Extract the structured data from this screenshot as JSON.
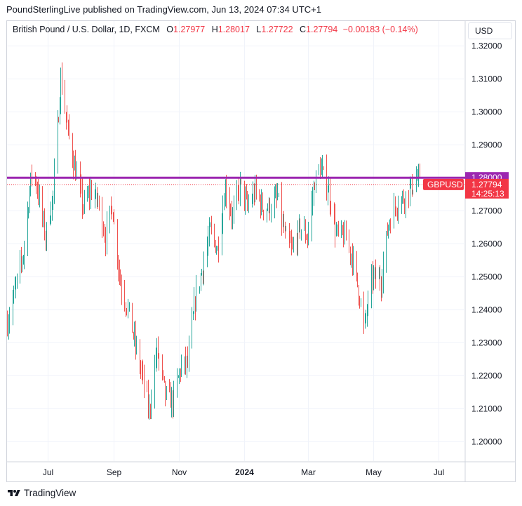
{
  "header": {
    "published_by": "PoundSterlingLive published on TradingView.com, Jun 13, 2024 07:34 UTC+1"
  },
  "legend": {
    "instrument": "British Pound / U.S. Dollar, 1D, FXCM",
    "o_label": "O",
    "o": "1.27977",
    "h_label": "H",
    "h": "1.28017",
    "l_label": "L",
    "l": "1.27722",
    "c_label": "C",
    "c": "1.27794",
    "change": "−0.00183 (−0.14%)"
  },
  "currency_button": "USD",
  "footer": {
    "brand": "TradingView"
  },
  "colors": {
    "up": "#26a69a",
    "down": "#ef5350",
    "level_line": "#9c27b0",
    "price_label": "#f23645"
  },
  "chart_data": {
    "type": "candlestick",
    "symbol": "GBPUSD",
    "y_range": [
      1.194,
      1.322
    ],
    "y_ticks": [
      "1.20000",
      "1.21000",
      "1.22000",
      "1.23000",
      "1.24000",
      "1.25000",
      "1.26000",
      "1.27000",
      "1.28000",
      "1.29000",
      "1.30000",
      "1.31000",
      "1.32000"
    ],
    "x_ticks": [
      {
        "label": "Jul",
        "date": "2023-07-01"
      },
      {
        "label": "Sep",
        "date": "2023-09-01"
      },
      {
        "label": "Nov",
        "date": "2023-11-01"
      },
      {
        "label": "2024",
        "date": "2024-01-01",
        "bold": true
      },
      {
        "label": "Mar",
        "date": "2024-03-01"
      },
      {
        "label": "May",
        "date": "2024-05-01"
      },
      {
        "label": "Jul",
        "date": "2024-07-01"
      }
    ],
    "x_start": "2023-05-24",
    "x_end": "2024-07-26",
    "level_line": {
      "value": 1.28,
      "label": "1.28000"
    },
    "last_price": {
      "value": 1.27794,
      "label": "1.27794",
      "countdown": "14:25:13"
    },
    "series": [
      {
        "date": "2023-05-24",
        "close": 1.236
      },
      {
        "date": "2023-06-08",
        "close": 1.257
      },
      {
        "date": "2023-06-16",
        "close": 1.282
      },
      {
        "date": "2023-06-21",
        "close": 1.277
      },
      {
        "date": "2023-06-29",
        "close": 1.262
      },
      {
        "date": "2023-07-06",
        "close": 1.275
      },
      {
        "date": "2023-07-13",
        "close": 1.31
      },
      {
        "date": "2023-07-19",
        "close": 1.296
      },
      {
        "date": "2023-07-25",
        "close": 1.285
      },
      {
        "date": "2023-08-03",
        "close": 1.271
      },
      {
        "date": "2023-08-10",
        "close": 1.276
      },
      {
        "date": "2023-08-17",
        "close": 1.273
      },
      {
        "date": "2023-08-24",
        "close": 1.262
      },
      {
        "date": "2023-08-30",
        "close": 1.272
      },
      {
        "date": "2023-09-07",
        "close": 1.248
      },
      {
        "date": "2023-09-15",
        "close": 1.239
      },
      {
        "date": "2023-09-21",
        "close": 1.229
      },
      {
        "date": "2023-09-28",
        "close": 1.219
      },
      {
        "date": "2023-10-04",
        "close": 1.209
      },
      {
        "date": "2023-10-11",
        "close": 1.228
      },
      {
        "date": "2023-10-19",
        "close": 1.214
      },
      {
        "date": "2023-10-26",
        "close": 1.212
      },
      {
        "date": "2023-11-02",
        "close": 1.222
      },
      {
        "date": "2023-11-09",
        "close": 1.224
      },
      {
        "date": "2023-11-16",
        "close": 1.243
      },
      {
        "date": "2023-11-23",
        "close": 1.253
      },
      {
        "date": "2023-11-30",
        "close": 1.264
      },
      {
        "date": "2023-12-07",
        "close": 1.258
      },
      {
        "date": "2023-12-14",
        "close": 1.277
      },
      {
        "date": "2023-12-21",
        "close": 1.268
      },
      {
        "date": "2023-12-28",
        "close": 1.278
      },
      {
        "date": "2024-01-04",
        "close": 1.271
      },
      {
        "date": "2024-01-11",
        "close": 1.276
      },
      {
        "date": "2024-01-18",
        "close": 1.271
      },
      {
        "date": "2024-01-25",
        "close": 1.271
      },
      {
        "date": "2024-02-01",
        "close": 1.274
      },
      {
        "date": "2024-02-08",
        "close": 1.262
      },
      {
        "date": "2024-02-15",
        "close": 1.258
      },
      {
        "date": "2024-02-22",
        "close": 1.265
      },
      {
        "date": "2024-02-29",
        "close": 1.262
      },
      {
        "date": "2024-03-07",
        "close": 1.279
      },
      {
        "date": "2024-03-12",
        "close": 1.283
      },
      {
        "date": "2024-03-20",
        "close": 1.276
      },
      {
        "date": "2024-03-27",
        "close": 1.263
      },
      {
        "date": "2024-04-04",
        "close": 1.262
      },
      {
        "date": "2024-04-11",
        "close": 1.256
      },
      {
        "date": "2024-04-18",
        "close": 1.244
      },
      {
        "date": "2024-04-22",
        "close": 1.234
      },
      {
        "date": "2024-04-30",
        "close": 1.25
      },
      {
        "date": "2024-05-08",
        "close": 1.249
      },
      {
        "date": "2024-05-15",
        "close": 1.266
      },
      {
        "date": "2024-05-22",
        "close": 1.272
      },
      {
        "date": "2024-05-29",
        "close": 1.274
      },
      {
        "date": "2024-06-05",
        "close": 1.277
      },
      {
        "date": "2024-06-11",
        "close": 1.28
      },
      {
        "date": "2024-06-13",
        "close": 1.278
      }
    ]
  }
}
